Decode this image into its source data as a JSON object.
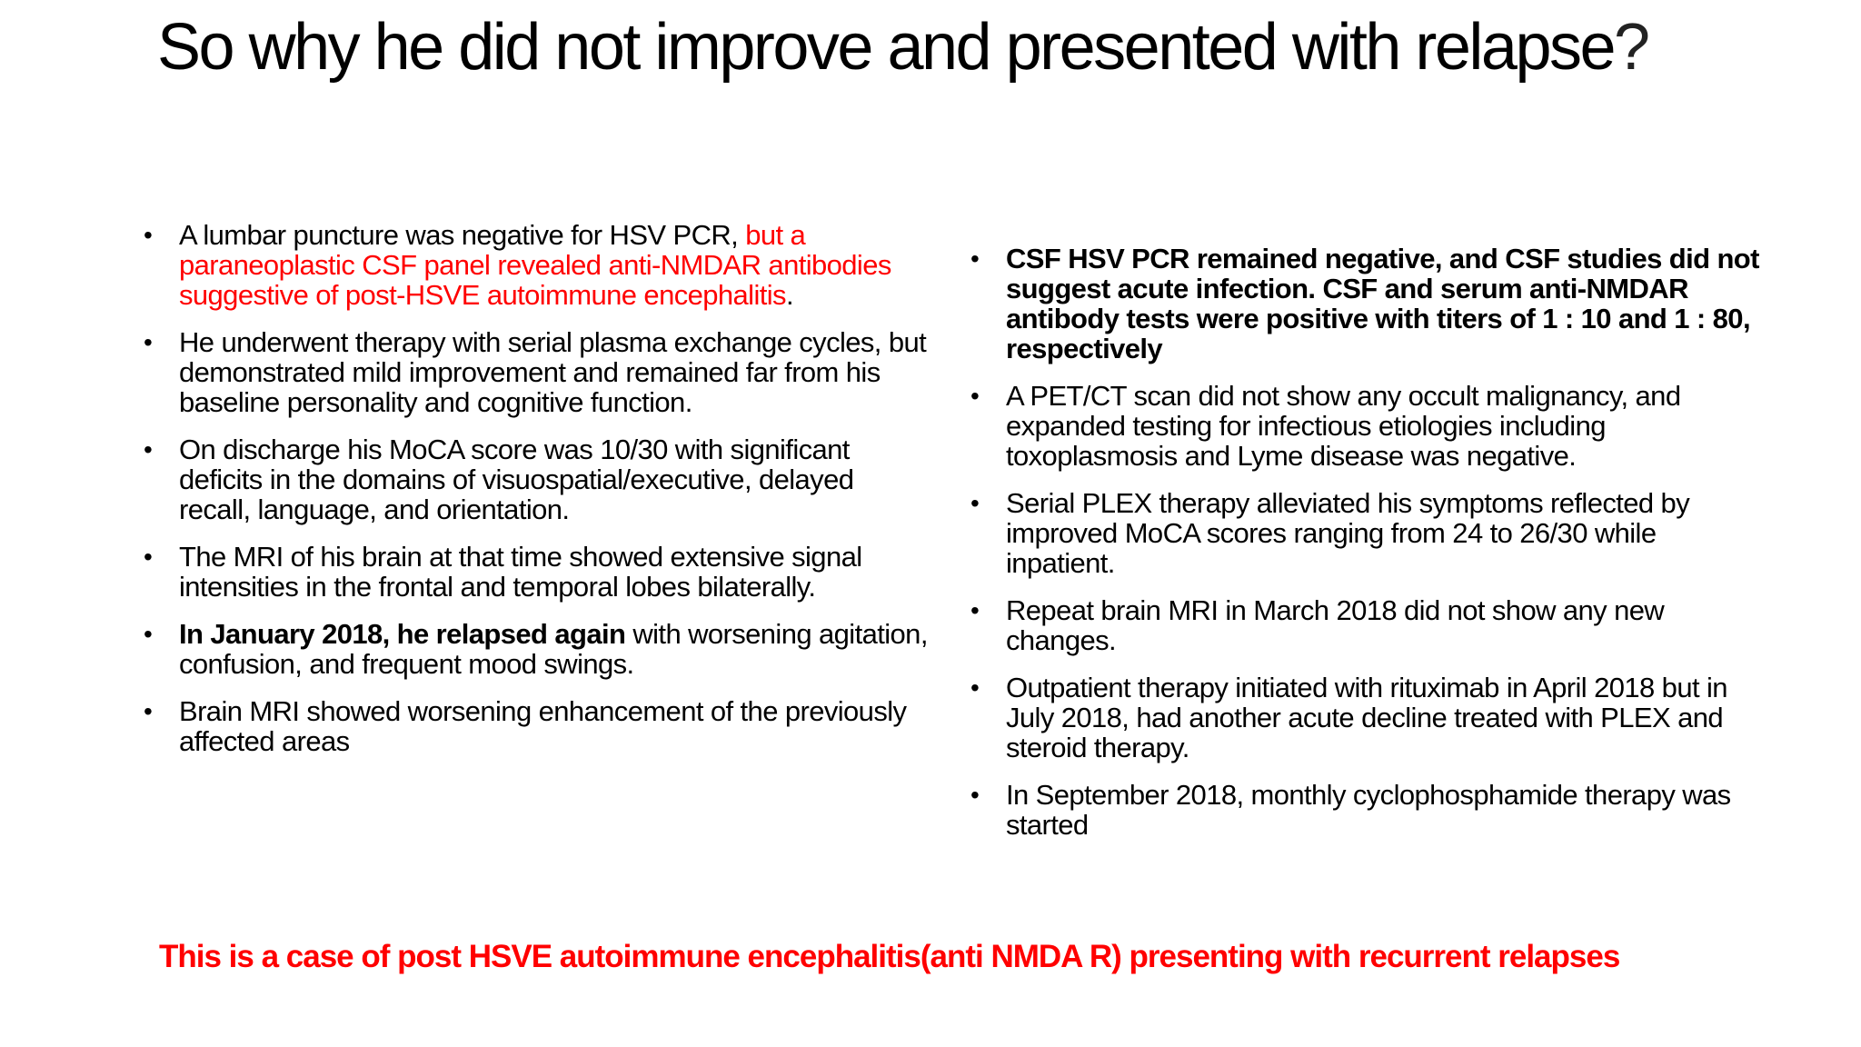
{
  "slide": {
    "title": "So why he did not improve and presented with relapse",
    "title_punct": "?"
  },
  "left_column": {
    "items": [
      {
        "plain": "A lumbar puncture was negative for HSV PCR, ",
        "red": "but a paraneoplastic CSF panel revealed anti-NMDAR antibodies suggestive of post-HSVE autoimmune encephalitis",
        "tail": "."
      },
      {
        "text": "He underwent therapy with serial plasma exchange cycles, but demonstrated mild improvement and remained far from his baseline personality and cognitive function."
      },
      {
        "text": "On discharge his MoCA score was 10/30 with significant deficits in the domains of visuospatial/executive, delayed recall, language, and orientation."
      },
      {
        "text": "The MRI of his brain at that time showed extensive signal intensities in the frontal and temporal lobes bilaterally."
      },
      {
        "bold": "In January 2018, he relapsed again",
        "text": " with worsening agitation, confusion, and frequent mood swings."
      },
      {
        "text": "Brain MRI showed worsening enhancement of the previously affected areas"
      }
    ]
  },
  "right_column": {
    "items": [
      {
        "bold": "CSF HSV PCR remained negative, and CSF studies did not suggest acute infection. CSF and serum anti-NMDAR antibody tests were positive with titers of 1 : 10 and 1 : 80, respectively"
      },
      {
        "text": "A PET/CT scan did not show any occult malignancy, and expanded testing for infectious etiologies including toxoplasmosis and Lyme disease was negative."
      },
      {
        "text": "Serial PLEX therapy alleviated his symptoms reflected by improved MoCA scores ranging from 24 to 26/30 while inpatient."
      },
      {
        "text": "Repeat brain MRI in March 2018 did not show any new changes."
      },
      {
        "text": "Outpatient therapy initiated with rituximab in April 2018 but in July 2018, had another acute decline treated with PLEX and steroid therapy."
      },
      {
        "text": "In September 2018, monthly cyclophosphamide therapy was started"
      }
    ]
  },
  "conclusion": {
    "text": "This is a case of post HSVE autoimmune encephalitis(anti NMDA R) presenting with recurrent relapses"
  },
  "colors": {
    "text": "#000000",
    "accent_red": "#ff0000",
    "background": "#ffffff"
  },
  "bullet_glyph": "•"
}
